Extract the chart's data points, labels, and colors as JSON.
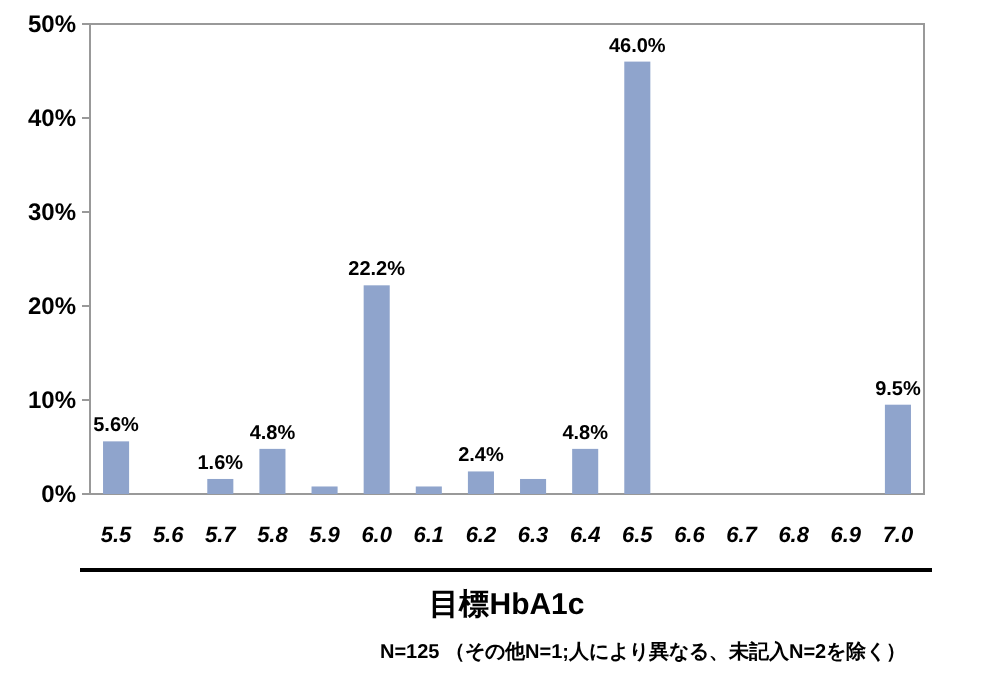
{
  "chart_data": {
    "type": "bar",
    "xlabel": "目標HbA1c",
    "categories": [
      "5.5",
      "5.6",
      "5.7",
      "5.8",
      "5.9",
      "6.0",
      "6.1",
      "6.2",
      "6.3",
      "6.4",
      "6.5",
      "6.6",
      "6.7",
      "6.8",
      "6.9",
      "7.0"
    ],
    "values": [
      5.6,
      0,
      1.6,
      4.8,
      0.8,
      22.2,
      0.8,
      2.4,
      1.6,
      4.8,
      46.0,
      0,
      0,
      0,
      0,
      9.5
    ],
    "value_labels": [
      "5.6%",
      null,
      "1.6%",
      "4.8%",
      null,
      "22.2%",
      null,
      "2.4%",
      null,
      "4.8%",
      "46.0%",
      null,
      null,
      null,
      null,
      "9.5%"
    ],
    "color": "#8fa4cc",
    "ylim": [
      0,
      50
    ],
    "yticks": [
      {
        "value": 0,
        "label": "0%"
      },
      {
        "value": 10,
        "label": "10%"
      },
      {
        "value": 20,
        "label": "20%"
      },
      {
        "value": 30,
        "label": "30%"
      },
      {
        "value": 40,
        "label": "40%"
      },
      {
        "value": 50,
        "label": "50%"
      }
    ],
    "grid": false,
    "annotations": [
      "N=125 （その他N=1;人により異なる、未記入N=2を除く）"
    ]
  }
}
